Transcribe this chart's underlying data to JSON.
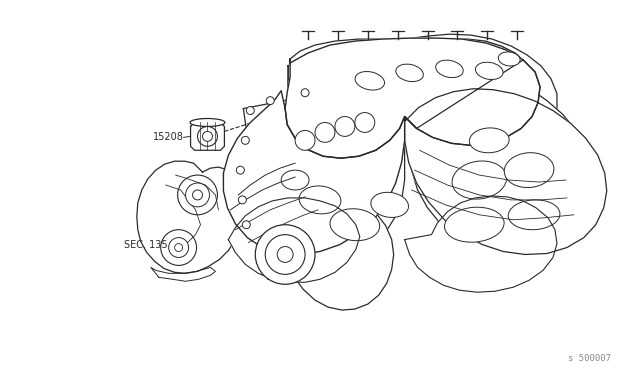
{
  "bg_color": "#ffffff",
  "line_color": "#2a2a2a",
  "label_15208": "15208",
  "label_sec135": "SEC. 135",
  "label_watermark": "s 500007",
  "figsize": [
    6.4,
    3.72
  ],
  "dpi": 100,
  "bg_fill": "#f5f0e8"
}
